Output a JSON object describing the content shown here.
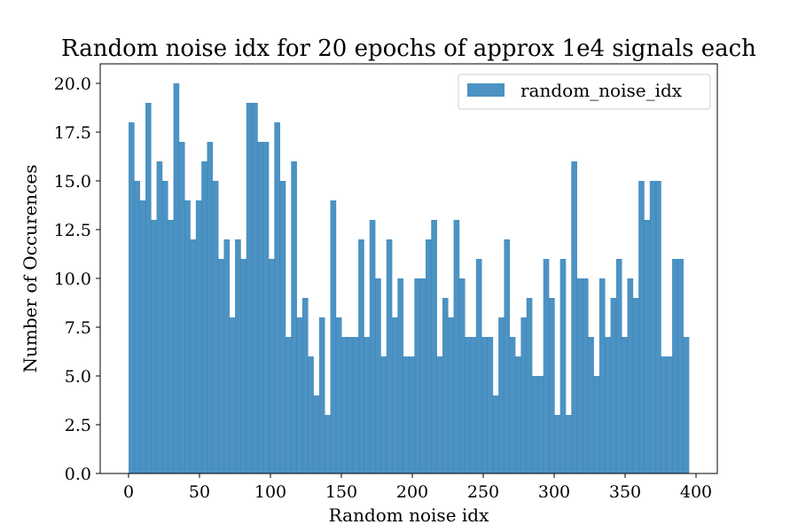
{
  "chart_data": {
    "type": "bar",
    "title": "Random noise idx for 20 epochs of approx 1e4 signals each",
    "xlabel": "Random noise idx",
    "ylabel": "Number of Occurences",
    "xlim": [
      -20,
      415
    ],
    "ylim": [
      0,
      21
    ],
    "bin_start": 0,
    "bin_width": 3.95,
    "values": [
      18,
      15,
      14,
      19,
      13,
      16,
      15,
      13,
      20,
      17,
      14,
      12,
      14,
      16,
      17,
      15,
      11,
      12,
      8,
      12,
      11,
      19,
      19,
      17,
      17,
      11,
      18,
      15,
      7,
      16,
      8,
      9,
      6,
      4,
      8,
      3,
      14,
      8,
      7,
      7,
      7,
      12,
      7,
      13,
      10,
      6,
      12,
      8,
      10,
      6,
      6,
      10,
      10,
      12,
      13,
      6,
      9,
      8,
      13,
      10,
      7,
      7,
      11,
      7,
      7,
      4,
      8,
      12,
      7,
      6,
      8,
      9,
      5,
      5,
      11,
      9,
      3,
      11,
      3,
      16,
      10,
      10,
      7,
      5,
      10,
      7,
      9,
      11,
      7,
      10,
      9,
      15,
      13,
      15,
      15,
      6,
      6,
      11,
      11,
      7
    ],
    "x_ticks": [
      {
        "value": 0,
        "label": "0"
      },
      {
        "value": 50,
        "label": "50"
      },
      {
        "value": 100,
        "label": "100"
      },
      {
        "value": 150,
        "label": "150"
      },
      {
        "value": 200,
        "label": "200"
      },
      {
        "value": 250,
        "label": "250"
      },
      {
        "value": 300,
        "label": "300"
      },
      {
        "value": 350,
        "label": "350"
      },
      {
        "value": 400,
        "label": "400"
      }
    ],
    "y_ticks": [
      {
        "value": 0,
        "label": "0.0"
      },
      {
        "value": 2.5,
        "label": "2.5"
      },
      {
        "value": 5,
        "label": "5.0"
      },
      {
        "value": 7.5,
        "label": "7.5"
      },
      {
        "value": 10,
        "label": "10.0"
      },
      {
        "value": 12.5,
        "label": "12.5"
      },
      {
        "value": 15,
        "label": "15.0"
      },
      {
        "value": 17.5,
        "label": "17.5"
      },
      {
        "value": 20,
        "label": "20.0"
      }
    ],
    "legend": {
      "label": "random_noise_idx",
      "position": "upper right"
    },
    "bar_color": "#1f77b4",
    "bar_alpha": 0.8,
    "grid": false
  }
}
